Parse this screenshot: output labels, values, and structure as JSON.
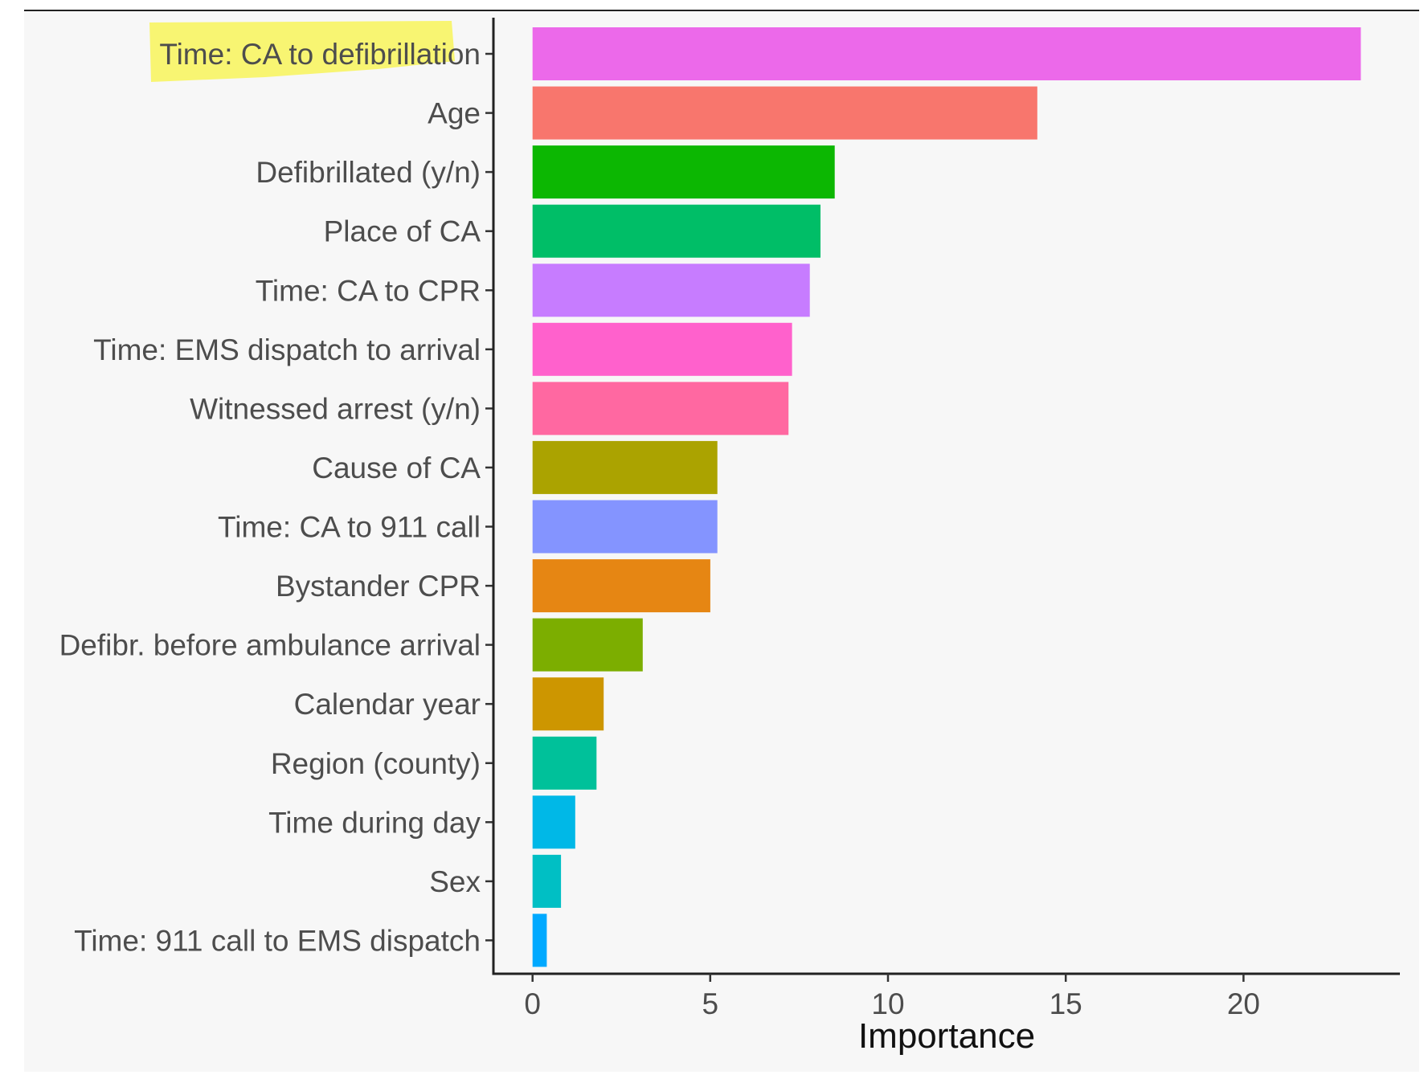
{
  "chart_data": {
    "type": "bar",
    "orientation": "horizontal",
    "title": "",
    "xlabel": "Importance",
    "ylabel": "",
    "xlim": [
      -1.1,
      24.4
    ],
    "xticks": [
      0,
      5,
      10,
      15,
      20
    ],
    "grid": false,
    "legend": "none",
    "highlighted_category": "Time: CA to defibrillation",
    "highlight_color": "#f8f55a",
    "categories": [
      "Time: CA to defibrillation",
      "Age",
      "Defibrillated (y/n)",
      "Place of CA",
      "Time: CA to CPR",
      "Time: EMS dispatch to arrival",
      "Witnessed arrest (y/n)",
      "Cause of CA",
      "Time: CA to 911 call",
      "Bystander CPR",
      "Defibr. before ambulance arrival",
      "Calendar year",
      "Region (county)",
      "Time during day",
      "Sex",
      "Time: 911 call to EMS dispatch"
    ],
    "values": [
      23.3,
      14.2,
      8.5,
      8.1,
      7.8,
      7.3,
      7.2,
      5.2,
      5.2,
      5.0,
      3.1,
      2.0,
      1.8,
      1.2,
      0.8,
      0.4
    ],
    "colors": [
      "#ec69ea",
      "#f8766d",
      "#0cb702",
      "#00be67",
      "#c77cff",
      "#ff61cc",
      "#ff68a1",
      "#aba300",
      "#8494ff",
      "#e68613",
      "#7cae00",
      "#cd9600",
      "#00c19a",
      "#00b8e7",
      "#00bfc4",
      "#00a9ff"
    ]
  }
}
